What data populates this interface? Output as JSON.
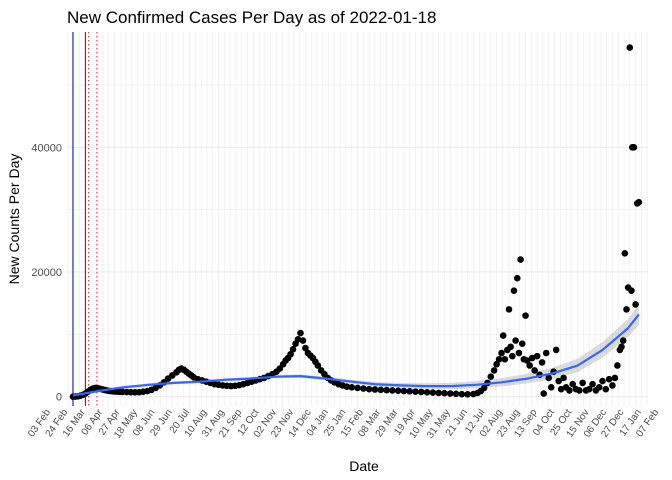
{
  "chart_data": {
    "type": "scatter",
    "title": "New Confirmed Cases Per Day as of 2022-01-18",
    "xlabel": "Date",
    "ylabel": "New Counts Per Day",
    "x_range": [
      "2020-02-24",
      "2022-01-25"
    ],
    "ylim": [
      -1500,
      58500
    ],
    "y_ticks": [
      0,
      20000,
      40000
    ],
    "y_tick_labels": [
      "0",
      "20000",
      "40000"
    ],
    "x_tick_labels": [
      "03 Feb",
      "24 Feb",
      "16 Mar",
      "06 Apr",
      "27 Apr",
      "18 May",
      "08 Jun",
      "29 Jun",
      "20 Jul",
      "10 Aug",
      "31 Aug",
      "21 Sep",
      "12 Oct",
      "02 Nov",
      "23 Nov",
      "14 Dec",
      "04 Jan",
      "25 Jan",
      "15 Feb",
      "08 Mar",
      "29 Mar",
      "19 Apr",
      "10 May",
      "31 May",
      "21 Jun",
      "12 Jul",
      "02 Aug",
      "23 Aug",
      "13 Sep",
      "04 Oct",
      "25 Oct",
      "15 Nov",
      "06 Dec",
      "27 Dec",
      "17 Jan",
      "07 Feb"
    ],
    "x_tick_dates": [
      "2020-02-03",
      "2020-02-24",
      "2020-03-16",
      "2020-04-06",
      "2020-04-27",
      "2020-05-18",
      "2020-06-08",
      "2020-06-29",
      "2020-07-20",
      "2020-08-10",
      "2020-08-31",
      "2020-09-21",
      "2020-10-12",
      "2020-11-02",
      "2020-11-23",
      "2020-12-14",
      "2021-01-04",
      "2021-01-25",
      "2021-02-15",
      "2021-03-08",
      "2021-03-29",
      "2021-04-19",
      "2021-05-10",
      "2021-05-31",
      "2021-06-21",
      "2021-07-12",
      "2021-08-02",
      "2021-08-23",
      "2021-09-13",
      "2021-10-04",
      "2021-10-25",
      "2021-11-15",
      "2021-12-06",
      "2021-12-27",
      "2022-01-17",
      "2022-02-07"
    ],
    "vertical_lines": [
      {
        "date": "2020-03-01",
        "color": "#0000cd",
        "style": "solid"
      },
      {
        "date": "2020-03-16",
        "color": "#8b0000",
        "style": "solid"
      },
      {
        "date": "2020-03-20",
        "color": "#dd2222",
        "style": "dotted"
      },
      {
        "date": "2020-03-30",
        "color": "#dd2222",
        "style": "dotted"
      }
    ],
    "series": [
      {
        "type": "scatter",
        "color": "#000000",
        "points": [
          [
            "2020-03-01",
            0
          ],
          [
            "2020-03-04",
            20
          ],
          [
            "2020-03-07",
            60
          ],
          [
            "2020-03-10",
            150
          ],
          [
            "2020-03-13",
            300
          ],
          [
            "2020-03-16",
            500
          ],
          [
            "2020-03-19",
            800
          ],
          [
            "2020-03-22",
            1100
          ],
          [
            "2020-03-25",
            1300
          ],
          [
            "2020-03-28",
            1400
          ],
          [
            "2020-03-31",
            1350
          ],
          [
            "2020-04-03",
            1250
          ],
          [
            "2020-04-06",
            1150
          ],
          [
            "2020-04-09",
            1050
          ],
          [
            "2020-04-12",
            950
          ],
          [
            "2020-04-15",
            900
          ],
          [
            "2020-04-18",
            850
          ],
          [
            "2020-04-21",
            820
          ],
          [
            "2020-04-24",
            800
          ],
          [
            "2020-04-27",
            780
          ],
          [
            "2020-04-30",
            760
          ],
          [
            "2020-05-05",
            740
          ],
          [
            "2020-05-10",
            720
          ],
          [
            "2020-05-15",
            700
          ],
          [
            "2020-05-20",
            720
          ],
          [
            "2020-05-25",
            800
          ],
          [
            "2020-05-30",
            900
          ],
          [
            "2020-06-04",
            1100
          ],
          [
            "2020-06-09",
            1400
          ],
          [
            "2020-06-14",
            1800
          ],
          [
            "2020-06-19",
            2300
          ],
          [
            "2020-06-24",
            2900
          ],
          [
            "2020-06-29",
            3400
          ],
          [
            "2020-07-04",
            3900
          ],
          [
            "2020-07-07",
            4300
          ],
          [
            "2020-07-10",
            4500
          ],
          [
            "2020-07-13",
            4300
          ],
          [
            "2020-07-16",
            4000
          ],
          [
            "2020-07-19",
            3700
          ],
          [
            "2020-07-22",
            3400
          ],
          [
            "2020-07-25",
            3100
          ],
          [
            "2020-07-30",
            2800
          ],
          [
            "2020-08-04",
            2600
          ],
          [
            "2020-08-09",
            2400
          ],
          [
            "2020-08-14",
            2200
          ],
          [
            "2020-08-19",
            2000
          ],
          [
            "2020-08-24",
            1900
          ],
          [
            "2020-08-29",
            1800
          ],
          [
            "2020-09-03",
            1750
          ],
          [
            "2020-09-08",
            1700
          ],
          [
            "2020-09-13",
            1750
          ],
          [
            "2020-09-18",
            1850
          ],
          [
            "2020-09-23",
            2000
          ],
          [
            "2020-09-28",
            2200
          ],
          [
            "2020-10-03",
            2400
          ],
          [
            "2020-10-08",
            2600
          ],
          [
            "2020-10-13",
            2800
          ],
          [
            "2020-10-18",
            3000
          ],
          [
            "2020-10-23",
            3300
          ],
          [
            "2020-10-28",
            3600
          ],
          [
            "2020-11-02",
            4000
          ],
          [
            "2020-11-06",
            4500
          ],
          [
            "2020-11-10",
            5200
          ],
          [
            "2020-11-13",
            5800
          ],
          [
            "2020-11-16",
            6200
          ],
          [
            "2020-11-19",
            6800
          ],
          [
            "2020-11-22",
            7600
          ],
          [
            "2020-11-25",
            8500
          ],
          [
            "2020-11-28",
            9200
          ],
          [
            "2020-12-01",
            10200
          ],
          [
            "2020-12-04",
            9000
          ],
          [
            "2020-12-07",
            7800
          ],
          [
            "2020-12-10",
            7000
          ],
          [
            "2020-12-13",
            6600
          ],
          [
            "2020-12-16",
            6200
          ],
          [
            "2020-12-19",
            5600
          ],
          [
            "2020-12-22",
            5000
          ],
          [
            "2020-12-26",
            4200
          ],
          [
            "2020-12-30",
            3600
          ],
          [
            "2021-01-03",
            3000
          ],
          [
            "2021-01-07",
            2600
          ],
          [
            "2021-01-11",
            2300
          ],
          [
            "2021-01-16",
            2000
          ],
          [
            "2021-01-21",
            1800
          ],
          [
            "2021-01-26",
            1600
          ],
          [
            "2021-02-01",
            1500
          ],
          [
            "2021-02-08",
            1400
          ],
          [
            "2021-02-15",
            1300
          ],
          [
            "2021-02-22",
            1200
          ],
          [
            "2021-03-01",
            1150
          ],
          [
            "2021-03-08",
            1100
          ],
          [
            "2021-03-15",
            1050
          ],
          [
            "2021-03-22",
            1000
          ],
          [
            "2021-03-29",
            950
          ],
          [
            "2021-04-05",
            900
          ],
          [
            "2021-04-12",
            850
          ],
          [
            "2021-04-19",
            800
          ],
          [
            "2021-04-26",
            750
          ],
          [
            "2021-05-03",
            700
          ],
          [
            "2021-05-10",
            650
          ],
          [
            "2021-05-17",
            600
          ],
          [
            "2021-05-24",
            550
          ],
          [
            "2021-05-31",
            500
          ],
          [
            "2021-06-07",
            450
          ],
          [
            "2021-06-14",
            400
          ],
          [
            "2021-06-21",
            380
          ],
          [
            "2021-06-28",
            420
          ],
          [
            "2021-07-03",
            600
          ],
          [
            "2021-07-07",
            900
          ],
          [
            "2021-07-11",
            1400
          ],
          [
            "2021-07-15",
            2200
          ],
          [
            "2021-07-19",
            3200
          ],
          [
            "2021-07-23",
            4200
          ],
          [
            "2021-07-26",
            5200
          ],
          [
            "2021-07-29",
            6000
          ],
          [
            "2021-08-01",
            7000
          ],
          [
            "2021-08-03",
            9800
          ],
          [
            "2021-08-05",
            6000
          ],
          [
            "2021-08-08",
            7500
          ],
          [
            "2021-08-10",
            14000
          ],
          [
            "2021-08-12",
            8000
          ],
          [
            "2021-08-14",
            6500
          ],
          [
            "2021-08-16",
            17000
          ],
          [
            "2021-08-18",
            9000
          ],
          [
            "2021-08-20",
            19000
          ],
          [
            "2021-08-22",
            7000
          ],
          [
            "2021-08-24",
            22000
          ],
          [
            "2021-08-26",
            8500
          ],
          [
            "2021-08-28",
            6000
          ],
          [
            "2021-08-30",
            13000
          ],
          [
            "2021-09-01",
            5800
          ],
          [
            "2021-09-04",
            5000
          ],
          [
            "2021-09-07",
            6200
          ],
          [
            "2021-09-10",
            4200
          ],
          [
            "2021-09-13",
            6500
          ],
          [
            "2021-09-16",
            3500
          ],
          [
            "2021-09-19",
            5500
          ],
          [
            "2021-09-21",
            500
          ],
          [
            "2021-09-24",
            7000
          ],
          [
            "2021-09-27",
            3000
          ],
          [
            "2021-09-30",
            1500
          ],
          [
            "2021-10-03",
            4000
          ],
          [
            "2021-10-06",
            7500
          ],
          [
            "2021-10-09",
            2500
          ],
          [
            "2021-10-12",
            1200
          ],
          [
            "2021-10-15",
            3000
          ],
          [
            "2021-10-18",
            1500
          ],
          [
            "2021-10-22",
            1000
          ],
          [
            "2021-10-26",
            2000
          ],
          [
            "2021-10-30",
            1200
          ],
          [
            "2021-11-03",
            1000
          ],
          [
            "2021-11-07",
            2200
          ],
          [
            "2021-11-11",
            1000
          ],
          [
            "2021-11-15",
            1200
          ],
          [
            "2021-11-19",
            2000
          ],
          [
            "2021-11-23",
            1000
          ],
          [
            "2021-11-27",
            1500
          ],
          [
            "2021-12-01",
            2500
          ],
          [
            "2021-12-05",
            1200
          ],
          [
            "2021-12-09",
            2800
          ],
          [
            "2021-12-13",
            1800
          ],
          [
            "2021-12-16",
            3000
          ],
          [
            "2021-12-19",
            5000
          ],
          [
            "2021-12-22",
            7500
          ],
          [
            "2021-12-24",
            8000
          ],
          [
            "2021-12-26",
            9000
          ],
          [
            "2021-12-28",
            23000
          ],
          [
            "2021-12-30",
            14000
          ],
          [
            "2022-01-01",
            17500
          ],
          [
            "2022-01-03",
            56000
          ],
          [
            "2022-01-05",
            17000
          ],
          [
            "2022-01-06",
            40000
          ],
          [
            "2022-01-08",
            40000
          ],
          [
            "2022-01-10",
            14800
          ],
          [
            "2022-01-12",
            31000
          ],
          [
            "2022-01-14",
            31200
          ]
        ]
      },
      {
        "type": "smooth",
        "color": "#3366ff",
        "points": [
          [
            "2020-03-01",
            200
          ],
          [
            "2020-04-01",
            900
          ],
          [
            "2020-05-01",
            1500
          ],
          [
            "2020-06-01",
            1900
          ],
          [
            "2020-07-01",
            2200
          ],
          [
            "2020-08-01",
            2400
          ],
          [
            "2020-09-01",
            2700
          ],
          [
            "2020-10-01",
            2900
          ],
          [
            "2020-11-01",
            3200
          ],
          [
            "2020-12-01",
            3300
          ],
          [
            "2021-01-01",
            2900
          ],
          [
            "2021-02-01",
            2400
          ],
          [
            "2021-03-01",
            2000
          ],
          [
            "2021-04-01",
            1800
          ],
          [
            "2021-05-01",
            1700
          ],
          [
            "2021-06-01",
            1700
          ],
          [
            "2021-07-01",
            1900
          ],
          [
            "2021-08-01",
            2300
          ],
          [
            "2021-09-01",
            2900
          ],
          [
            "2021-10-01",
            3700
          ],
          [
            "2021-11-01",
            5000
          ],
          [
            "2021-12-01",
            7500
          ],
          [
            "2022-01-01",
            11000
          ],
          [
            "2022-01-14",
            13200
          ]
        ]
      }
    ]
  }
}
